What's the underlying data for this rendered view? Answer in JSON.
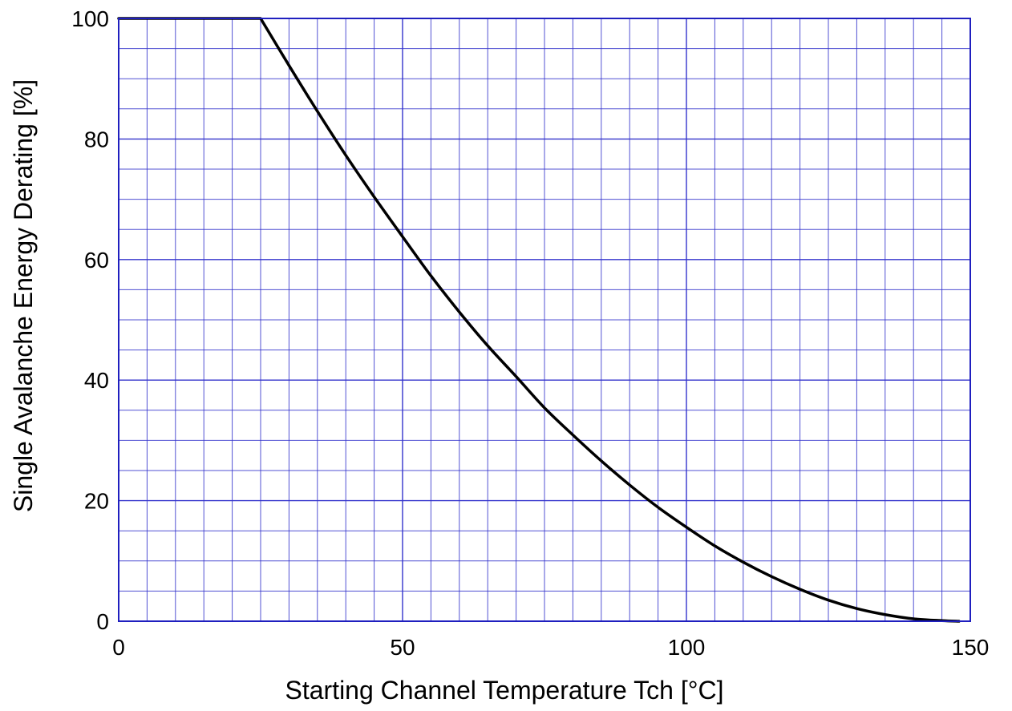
{
  "chart_data": {
    "type": "line",
    "title": "",
    "xlabel": "Starting Channel Temperature   Tch   [°C]",
    "ylabel": "Single Avalanche Energy Derating   [%]",
    "xlim": [
      0,
      150
    ],
    "ylim": [
      0,
      100
    ],
    "x_ticks": [
      0,
      50,
      100,
      150
    ],
    "y_ticks": [
      0,
      20,
      40,
      60,
      80,
      100
    ],
    "x_tick_labels": [
      "0",
      "50",
      "100",
      "150"
    ],
    "y_tick_labels": [
      "0",
      "20",
      "40",
      "60",
      "80",
      "100"
    ],
    "x_minor_step": 5,
    "y_minor_step": 5,
    "grid": true,
    "legend": "none",
    "colors": {
      "grid": "#3333cc",
      "line": "#000000",
      "frame": "#1f1fbf"
    },
    "series": [
      {
        "x": [
          0,
          25,
          30,
          35,
          40,
          45,
          50,
          55,
          60,
          65,
          70,
          75,
          80,
          85,
          90,
          95,
          100,
          105,
          110,
          115,
          120,
          125,
          130,
          135,
          140,
          145,
          148
        ],
        "y": [
          100,
          100,
          92.2,
          84.6,
          77.3,
          70.4,
          63.8,
          57.3,
          51.3,
          45.7,
          40.6,
          35.4,
          30.9,
          26.6,
          22.6,
          18.9,
          15.6,
          12.5,
          9.8,
          7.4,
          5.3,
          3.5,
          2.1,
          1.1,
          0.4,
          0.1,
          0
        ]
      }
    ]
  }
}
